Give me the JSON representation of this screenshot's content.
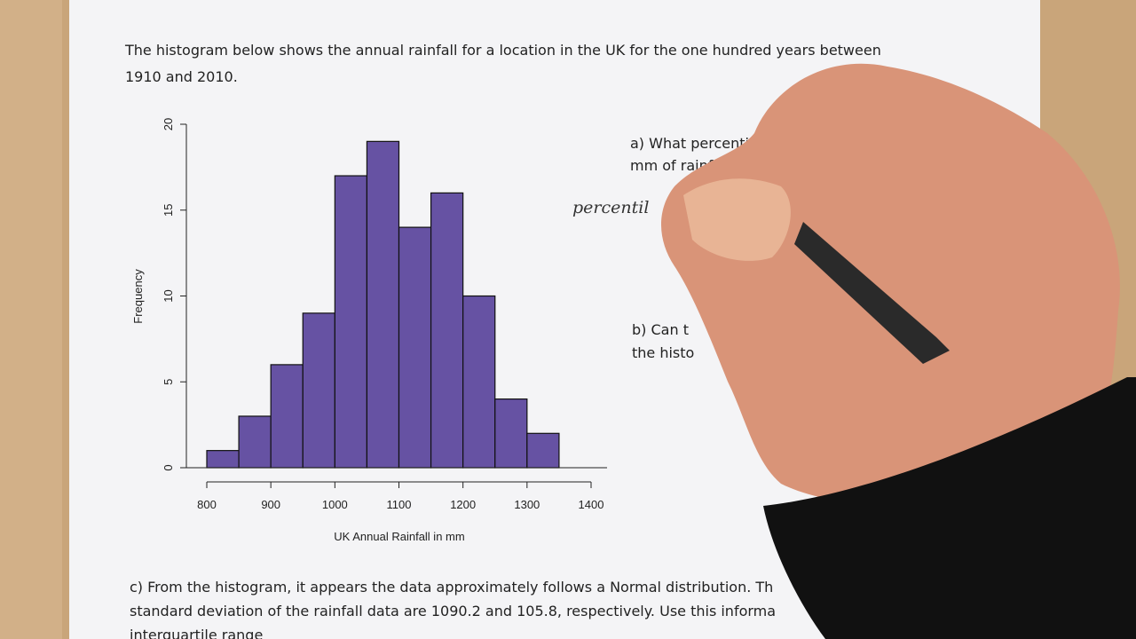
{
  "document": {
    "intro": [
      "The histogram below shows the annual rainfall for a location in the UK for the one hundred years between",
      "1910 and 2010."
    ],
    "question_a": [
      "a) What percentil",
      "mm of rainfall b"
    ],
    "question_b": [
      "b) Can t",
      "the histo"
    ],
    "question_c": [
      "c) From the histogram, it appears the data approximately follows a Normal distribution. Th",
      "standard deviation of the rainfall data are 1090.2 and 105.8, respectively. Use this informa",
      "interquartile range"
    ],
    "handwriting": "percentil"
  },
  "chart_data": {
    "type": "histogram",
    "x_label": "UK Annual Rainfall in mm",
    "y_label": "Frequency",
    "bins": [
      800,
      850,
      900,
      950,
      1000,
      1050,
      1100,
      1150,
      1200,
      1250,
      1300,
      1350
    ],
    "values": [
      1,
      3,
      6,
      9,
      17,
      19,
      14,
      16,
      10,
      4,
      2
    ],
    "color": "#6652a3",
    "xlim": [
      800,
      1400
    ],
    "xticks": [
      800,
      900,
      1000,
      1100,
      1200,
      1300,
      1400
    ],
    "ylim": [
      0,
      20
    ],
    "yticks": [
      0,
      5,
      10,
      15,
      20
    ]
  }
}
